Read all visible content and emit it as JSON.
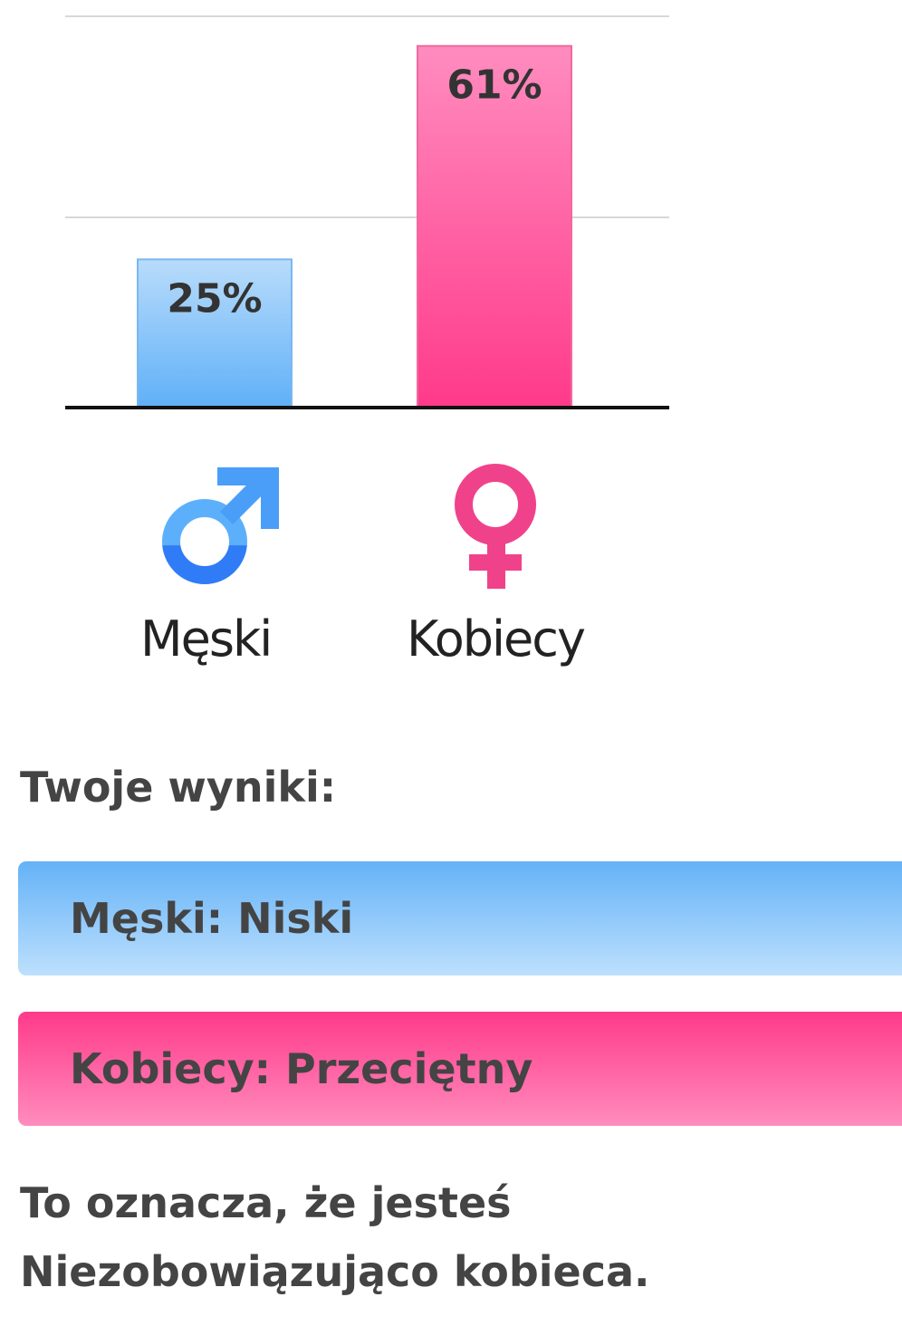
{
  "chart_data": {
    "type": "bar",
    "categories": [
      "Męski",
      "Kobiecy"
    ],
    "values": [
      25,
      61
    ],
    "data_labels": [
      "25%",
      "61%"
    ],
    "ylim": [
      0,
      66
    ],
    "grid": true,
    "colors": [
      "#64b5f6",
      "#ff3d8b"
    ],
    "category_icons": [
      "male-symbol-icon",
      "female-symbol-icon"
    ]
  },
  "results": {
    "heading": "Twoje wyniki:",
    "items": [
      {
        "label": "Męski: Niski",
        "color": "#64b5f6"
      },
      {
        "label": "Kobiecy: Przeciętny",
        "color": "#ff3d8b"
      }
    ],
    "summary_line1": "To oznacza, że jesteś",
    "summary_line2": "Niezobowiązująco kobieca."
  }
}
